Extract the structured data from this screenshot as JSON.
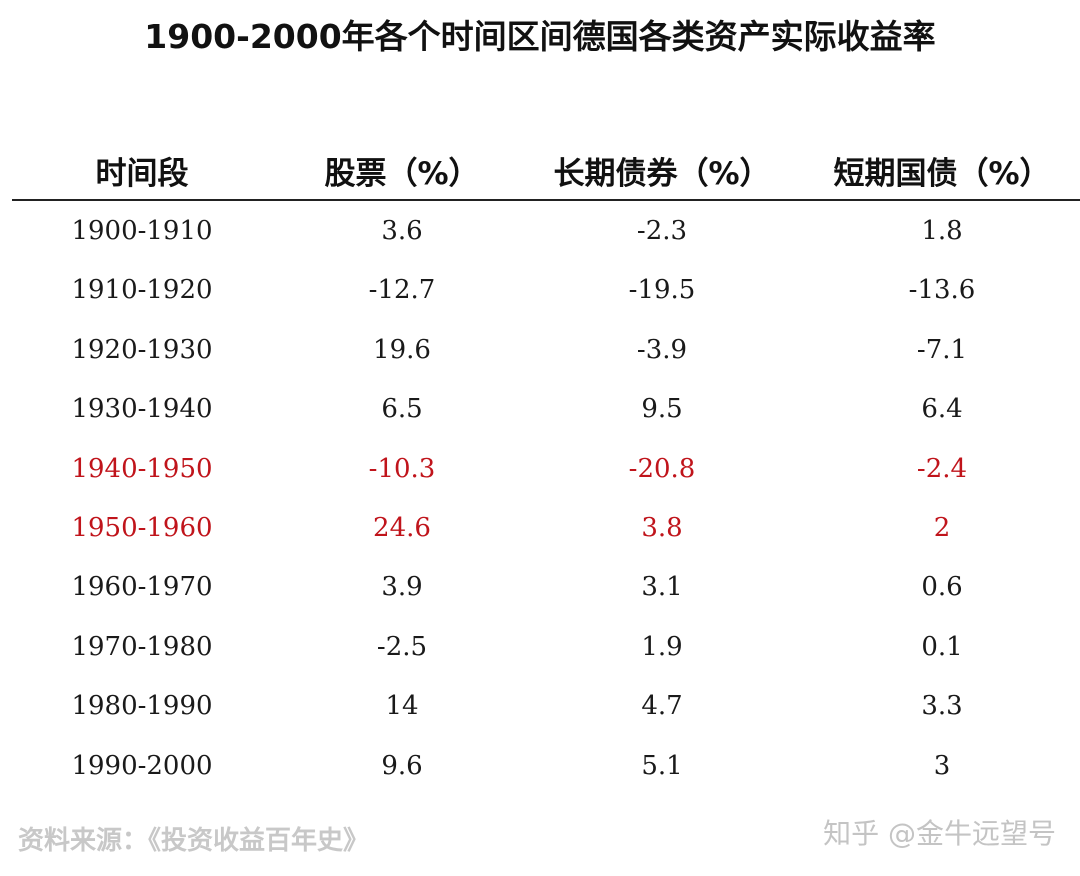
{
  "title": "1900-2000年各个时间区间德国各类资产实际收益率",
  "table": {
    "headers": [
      "时间段",
      "股票（%）",
      "长期债券（%）",
      "短期国债（%）"
    ],
    "rows": [
      {
        "cells": [
          "1900-1910",
          "3.6",
          "-2.3",
          "1.8"
        ],
        "highlight": false
      },
      {
        "cells": [
          "1910-1920",
          "-12.7",
          "-19.5",
          "-13.6"
        ],
        "highlight": false
      },
      {
        "cells": [
          "1920-1930",
          "19.6",
          "-3.9",
          "-7.1"
        ],
        "highlight": false
      },
      {
        "cells": [
          "1930-1940",
          "6.5",
          "9.5",
          "6.4"
        ],
        "highlight": false
      },
      {
        "cells": [
          "1940-1950",
          "-10.3",
          "-20.8",
          "-2.4"
        ],
        "highlight": true
      },
      {
        "cells": [
          "1950-1960",
          "24.6",
          "3.8",
          "2"
        ],
        "highlight": true
      },
      {
        "cells": [
          "1960-1970",
          "3.9",
          "3.1",
          "0.6"
        ],
        "highlight": false
      },
      {
        "cells": [
          "1970-1980",
          "-2.5",
          "1.9",
          "0.1"
        ],
        "highlight": false
      },
      {
        "cells": [
          "1980-1990",
          "14",
          "4.7",
          "3.3"
        ],
        "highlight": false
      },
      {
        "cells": [
          "1990-2000",
          "9.6",
          "5.1",
          "3"
        ],
        "highlight": false
      }
    ]
  },
  "source": "资料来源：《投资收益百年史》",
  "watermark": "知乎 @金牛远望号",
  "colors": {
    "highlight": "#c0141b",
    "text": "#1a1a1a"
  },
  "icons": {
    "watermark": "at-sign-icon"
  }
}
